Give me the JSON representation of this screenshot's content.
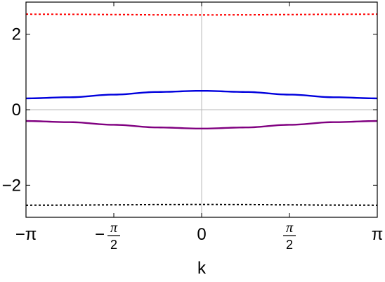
{
  "chart_data": {
    "type": "line",
    "title": "",
    "xlabel": "k",
    "ylabel": "",
    "xlim": [
      -3.14159265,
      3.14159265
    ],
    "ylim": [
      -2.85,
      2.85
    ],
    "grid": "axes-origin",
    "x_ticks": [
      {
        "value": -3.14159265,
        "label": "−π"
      },
      {
        "value": -1.5707963,
        "sign": "−",
        "numerator": "π",
        "denominator": "2"
      },
      {
        "value": 0,
        "label": "0"
      },
      {
        "value": 1.5707963,
        "sign": "",
        "numerator": "π",
        "denominator": "2"
      },
      {
        "value": 3.14159265,
        "label": "π"
      }
    ],
    "y_ticks": [
      {
        "value": 2,
        "label": "2"
      },
      {
        "value": 0,
        "label": "0"
      },
      {
        "value": -2,
        "label": "−2"
      }
    ],
    "series": [
      {
        "color": "#ff0000",
        "style": "dotted",
        "x": [
          -3.1416,
          -2.3562,
          -1.5708,
          -0.7854,
          0,
          0.7854,
          1.5708,
          2.3562,
          3.1416
        ],
        "y": [
          2.53,
          2.527,
          2.52,
          2.513,
          2.51,
          2.513,
          2.52,
          2.527,
          2.53
        ]
      },
      {
        "color": "#0000dd",
        "style": "solid",
        "x": [
          -3.1416,
          -2.3562,
          -1.5708,
          -0.7854,
          0,
          0.7854,
          1.5708,
          2.3562,
          3.1416
        ],
        "y": [
          0.3,
          0.33,
          0.4,
          0.47,
          0.5,
          0.47,
          0.4,
          0.33,
          0.3
        ]
      },
      {
        "color": "#800080",
        "style": "solid",
        "x": [
          -3.1416,
          -2.3562,
          -1.5708,
          -0.7854,
          0,
          0.7854,
          1.5708,
          2.3562,
          3.1416
        ],
        "y": [
          -0.3,
          -0.33,
          -0.4,
          -0.47,
          -0.5,
          -0.47,
          -0.4,
          -0.33,
          -0.3
        ]
      },
      {
        "color": "#000000",
        "style": "dotted",
        "x": [
          -3.1416,
          -2.3562,
          -1.5708,
          -0.7854,
          0,
          0.7854,
          1.5708,
          2.3562,
          3.1416
        ],
        "y": [
          -2.53,
          -2.527,
          -2.52,
          -2.513,
          -2.51,
          -2.513,
          -2.52,
          -2.527,
          -2.53
        ]
      }
    ]
  }
}
